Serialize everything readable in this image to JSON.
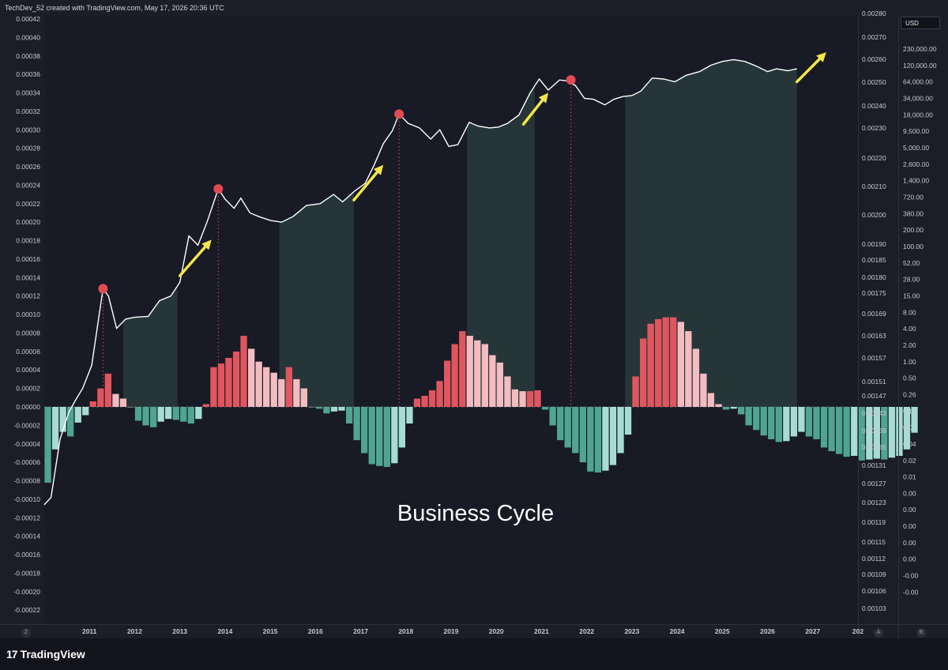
{
  "header": {
    "caption": "TechDev_52 created with TradingView.com, May 17, 2026 20:36 UTC"
  },
  "currency_button": "USD",
  "branding": {
    "logo_mark": "17",
    "logo_text": "TradingView"
  },
  "scale_buttons": {
    "left": "Z",
    "right_a": "A",
    "right_b": "B"
  },
  "colors": {
    "background": "#181a25",
    "line": "#ffffff",
    "bar_red_strong": "#e0565f",
    "bar_red_light": "#f2bcc1",
    "bar_green_strong": "#4fa58f",
    "bar_green_light": "#a6dcd1",
    "shaded_region": "#263638",
    "peak_marker": "#e04b54",
    "arrow": "#f5e64b"
  },
  "chart_data": {
    "type": "bar",
    "annotation": "Business Cycle",
    "left_axis": {
      "ticks": [
        "0.00042",
        "0.00040",
        "0.00038",
        "0.00036",
        "0.00034",
        "0.00032",
        "0.00030",
        "0.00028",
        "0.00026",
        "0.00024",
        "0.00022",
        "0.00020",
        "0.00018",
        "0.00016",
        "0.00014",
        "0.00012",
        "0.00010",
        "0.00008",
        "0.00006",
        "0.00004",
        "0.00002",
        "0.00000",
        "-0.00002",
        "-0.00004",
        "-0.00006",
        "-0.00008",
        "-0.00010",
        "-0.00012",
        "-0.00014",
        "-0.00016",
        "-0.00018",
        "-0.00020",
        "-0.00022"
      ],
      "ylim": [
        -0.00023,
        0.00042
      ]
    },
    "right_axis_1": {
      "ticks": [
        "0.00280",
        "0.00270",
        "0.00260",
        "0.00250",
        "0.00240",
        "0.00230",
        "0.00220",
        "0.00210",
        "0.00200",
        "0.00190",
        "0.00185",
        "0.00180",
        "0.00175",
        "0.00169",
        "0.00163",
        "0.00157",
        "0.00151",
        "0.00147",
        "0.00143",
        "0.00139",
        "0.00135",
        "0.00131",
        "0.00127",
        "0.00123",
        "0.00119",
        "0.00115",
        "0.00112",
        "0.00109",
        "0.00106",
        "0.00103"
      ]
    },
    "right_axis_2": {
      "ticks": [
        "230,000.00",
        "120,000.00",
        "64,000.00",
        "34,000.00",
        "18,000.00",
        "9,500.00",
        "5,000.00",
        "2,600.00",
        "1,400.00",
        "720.00",
        "380.00",
        "200.00",
        "100.00",
        "52.00",
        "28.00",
        "15.00",
        "8.00",
        "4.00",
        "2.00",
        "1.00",
        "0.50",
        "0.26",
        "0.14",
        "0.07",
        "0.04",
        "0.02",
        "0.01",
        "0.00",
        "0.00",
        "0.00",
        "0.00",
        "0.00",
        "-0.00",
        "-0.00"
      ]
    },
    "x_axis": {
      "ticks": [
        "2011",
        "2012",
        "2013",
        "2014",
        "2015",
        "2016",
        "2017",
        "2018",
        "2019",
        "2020",
        "2021",
        "2022",
        "2023",
        "2024",
        "2025",
        "2026",
        "2027",
        "202"
      ],
      "xlim": [
        2010.0,
        2028.0
      ]
    },
    "histogram": {
      "x_start": 2010.08,
      "step": 0.1667,
      "values": [
        -8.2e-05,
        -4.6e-05,
        -2.7e-05,
        -3.2e-05,
        -1.7e-05,
        -9e-06,
        6e-06,
        2e-05,
        3.6e-05,
        1.4e-05,
        9e-06,
        0.0,
        -1.5e-05,
        -2e-05,
        -2.2e-05,
        -1.6e-05,
        -1.3e-05,
        -1.4e-05,
        -1.6e-05,
        -1.8e-05,
        -1.3e-05,
        3e-06,
        4.3e-05,
        4.7e-05,
        5.3e-05,
        6e-05,
        7.7e-05,
        6.3e-05,
        4.9e-05,
        4.3e-05,
        3.7e-05,
        3e-05,
        4.3e-05,
        3e-05,
        2e-05,
        0.0,
        -2e-06,
        -7e-06,
        -5e-06,
        -4e-06,
        -1.8e-05,
        -3.6e-05,
        -5e-05,
        -6.2e-05,
        -6.4e-05,
        -6.5e-05,
        -6.1e-05,
        -4.4e-05,
        -1.8e-05,
        9e-06,
        1.2e-05,
        1.8e-05,
        2.8e-05,
        5e-05,
        6.8e-05,
        8.2e-05,
        7.7e-05,
        7.2e-05,
        6.8e-05,
        5.6e-05,
        4.8e-05,
        3.3e-05,
        1.9e-05,
        1.7e-05,
        1.7e-05,
        1.8e-05,
        -3e-06,
        -2e-05,
        -3.6e-05,
        -4.4e-05,
        -5e-05,
        -6e-05,
        -7e-05,
        -7.1e-05,
        -6.9e-05,
        -6.3e-05,
        -5e-05,
        -3e-05,
        3.3e-05,
        7.4e-05,
        9e-05,
        9.5e-05,
        9.7e-05,
        9.7e-05,
        9.2e-05,
        8.2e-05,
        6.3e-05,
        3.6e-05,
        1.5e-05,
        3e-06,
        -3e-06,
        -2e-06,
        -8e-06,
        -2e-05,
        -2.5e-05,
        -3.1e-05,
        -3.5e-05,
        -3.8e-05,
        -3.7e-05,
        -3.2e-05,
        -2.7e-05,
        -3.2e-05,
        -3.5e-05,
        -4.4e-05,
        -4.8e-05,
        -5.1e-05,
        -5.4e-05,
        -5.3e-05,
        -5.8e-05,
        -5.7e-05,
        -5.6e-05,
        -5.7e-05,
        -5.5e-05,
        -5.3e-05,
        -4.6e-05,
        -2.8e-05
      ]
    },
    "price_line": {
      "x": [
        2010.0,
        2010.15,
        2010.35,
        2010.55,
        2010.7,
        2010.85,
        2011.05,
        2011.3,
        2011.42,
        2011.6,
        2011.8,
        2012.0,
        2012.3,
        2012.55,
        2012.8,
        2013.0,
        2013.2,
        2013.4,
        2013.6,
        2013.85,
        2014.0,
        2014.2,
        2014.35,
        2014.55,
        2014.75,
        2015.0,
        2015.25,
        2015.5,
        2015.8,
        2016.1,
        2016.4,
        2016.6,
        2016.85,
        2017.1,
        2017.3,
        2017.5,
        2017.7,
        2017.85,
        2018.05,
        2018.3,
        2018.55,
        2018.75,
        2018.95,
        2019.15,
        2019.4,
        2019.6,
        2019.85,
        2020.05,
        2020.25,
        2020.5,
        2020.75,
        2020.95,
        2021.15,
        2021.4,
        2021.55,
        2021.75,
        2021.95,
        2022.15,
        2022.4,
        2022.6,
        2022.8,
        2023.0,
        2023.2,
        2023.45,
        2023.7,
        2023.95,
        2024.2,
        2024.5,
        2024.75,
        2025.0,
        2025.25,
        2025.5,
        2025.75,
        2026.0,
        2026.2,
        2026.45,
        2026.65
      ],
      "y": [
        -0.000106,
        -9.8e-05,
        -3.5e-05,
        -5e-06,
        8e-06,
        2e-05,
        4.5e-05,
        0.000128,
        0.00012,
        8.5e-05,
        9.5e-05,
        9.7e-05,
        9.8e-05,
        0.000115,
        0.00012,
        0.000135,
        0.000185,
        0.000175,
        0.0002,
        0.000236,
        0.000225,
        0.000215,
        0.000226,
        0.00021,
        0.000206,
        0.000202,
        0.0002,
        0.000206,
        0.000218,
        0.00022,
        0.00023,
        0.000222,
        0.000233,
        0.000242,
        0.000262,
        0.000285,
        0.000299,
        0.000317,
        0.000307,
        0.000302,
        0.00029,
        0.0003,
        0.000282,
        0.000284,
        0.000308,
        0.000304,
        0.000302,
        0.000303,
        0.000307,
        0.000316,
        0.00034,
        0.000355,
        0.000343,
        0.000354,
        0.000353,
        0.000348,
        0.000334,
        0.000333,
        0.000327,
        0.000333,
        0.000336,
        0.000337,
        0.000342,
        0.000356,
        0.000355,
        0.000352,
        0.000359,
        0.000363,
        0.00037,
        0.000374,
        0.000376,
        0.000374,
        0.000369,
        0.000363,
        0.000366,
        0.000364,
        0.000366
      ]
    },
    "shaded_regions": [
      [
        2011.75,
        2012.95
      ],
      [
        2015.2,
        2016.85
      ],
      [
        2019.35,
        2020.85
      ],
      [
        2022.85,
        2026.65
      ]
    ],
    "cycle_peaks": [
      {
        "x": 2011.3,
        "y": 0.000128
      },
      {
        "x": 2013.85,
        "y": 0.000236
      },
      {
        "x": 2017.85,
        "y": 0.000317
      },
      {
        "x": 2021.65,
        "y": 0.000354
      }
    ],
    "arrows": [
      {
        "from": [
          2013.0,
          0.000142
        ],
        "to": [
          2013.7,
          0.000181
        ]
      },
      {
        "from": [
          2016.85,
          0.000224
        ],
        "to": [
          2017.5,
          0.000262
        ]
      },
      {
        "from": [
          2020.6,
          0.000306
        ],
        "to": [
          2021.15,
          0.00034
        ]
      },
      {
        "from": [
          2026.65,
          0.000352
        ],
        "to": [
          2027.3,
          0.000384
        ]
      }
    ],
    "grid": false
  }
}
